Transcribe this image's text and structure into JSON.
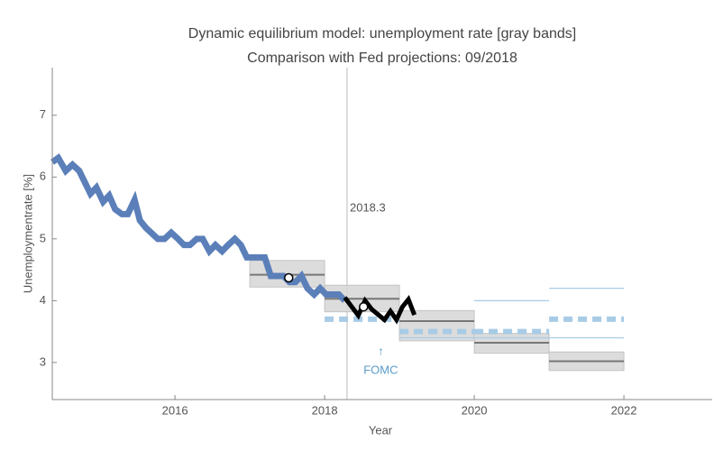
{
  "chart_data": {
    "type": "line",
    "title": "Dynamic equilibrium model: unemployment rate [gray bands]",
    "subtitle": "Comparison with Fed projections: 09/2018",
    "xlabel": "Year",
    "ylabel": "Unemploymentrate [%]",
    "xlim": [
      2014.36,
      2023.18
    ],
    "ylim": [
      2.4,
      7.77
    ],
    "xticks": [
      2016,
      2018,
      2020,
      2022
    ],
    "yticks": [
      3,
      4,
      5,
      6,
      7
    ],
    "series": [
      {
        "color": "#5b7fb9",
        "x": [
          2014.36,
          2014.44,
          2014.54,
          2014.63,
          2014.72,
          2014.87,
          2014.95,
          2015.04,
          2015.12,
          2015.2,
          2015.29,
          2015.37,
          2015.46,
          2015.53,
          2015.61,
          2015.77,
          2015.86,
          2015.95,
          2016.04,
          2016.12,
          2016.2,
          2016.29,
          2016.37,
          2016.46,
          2016.54,
          2016.63,
          2016.71,
          2016.8,
          2016.88,
          2016.96,
          2017.05,
          2017.2,
          2017.28,
          2017.45,
          2017.53,
          2017.61,
          2017.69,
          2017.77,
          2017.86,
          2017.94,
          2018.02,
          2018.19,
          2018.27
        ],
        "values": [
          6.24,
          6.31,
          6.1,
          6.2,
          6.1,
          5.73,
          5.83,
          5.6,
          5.7,
          5.48,
          5.4,
          5.4,
          5.63,
          5.3,
          5.18,
          5.0,
          5.0,
          5.1,
          5.0,
          4.9,
          4.9,
          5.0,
          5.0,
          4.8,
          4.9,
          4.8,
          4.9,
          5.0,
          4.9,
          4.7,
          4.7,
          4.7,
          4.4,
          4.4,
          4.3,
          4.3,
          4.4,
          4.2,
          4.1,
          4.2,
          4.1,
          4.1,
          4.0
        ]
      },
      {
        "color": "#000000",
        "x": [
          2018.27,
          2018.45,
          2018.54,
          2018.63,
          2018.8,
          2018.88,
          2018.96,
          2019.04,
          2019.12,
          2019.2
        ],
        "values": [
          4.05,
          3.76,
          4.0,
          3.86,
          3.69,
          3.83,
          3.69,
          3.9,
          4.02,
          3.77
        ]
      }
    ],
    "points": {
      "x": [
        2017.52,
        2018.52
      ],
      "values": [
        4.37,
        3.9
      ]
    },
    "bands": [
      {
        "x": [
          2017,
          2018
        ],
        "center": 4.42,
        "low": 4.22,
        "high": 4.65
      },
      {
        "x": [
          2018,
          2019
        ],
        "center": 4.03,
        "low": 3.82,
        "high": 4.25
      },
      {
        "x": [
          2019,
          2020
        ],
        "center": 3.67,
        "low": 3.35,
        "high": 3.84
      },
      {
        "x": [
          2020,
          2021
        ],
        "center": 3.32,
        "low": 3.15,
        "high": 3.47
      },
      {
        "x": [
          2021,
          2022
        ],
        "center": 3.02,
        "low": 2.87,
        "high": 3.17
      }
    ],
    "fed_color": "#a8cbe6",
    "fed_projections": [
      {
        "x": [
          2018,
          2019
        ],
        "value": 3.7
      },
      {
        "x": [
          2019,
          2020
        ],
        "value": 3.5
      },
      {
        "x": [
          2020,
          2021
        ],
        "value": 3.5
      },
      {
        "x": [
          2021,
          2022
        ],
        "value": 3.7
      }
    ],
    "fed_ranges": [
      {
        "x": [
          2019,
          2020
        ],
        "values": [
          3.4
        ]
      },
      {
        "x": [
          2020,
          2021
        ],
        "values": [
          3.4,
          4.0
        ]
      },
      {
        "x": [
          2021,
          2022
        ],
        "values": [
          3.4,
          4.2
        ]
      }
    ],
    "marker": {
      "x": 2018.3,
      "label": "2018.3"
    },
    "annotation": {
      "x": 2018.75,
      "arrow": "↑",
      "text": "FOMC",
      "color": "#5a9cc8"
    }
  }
}
